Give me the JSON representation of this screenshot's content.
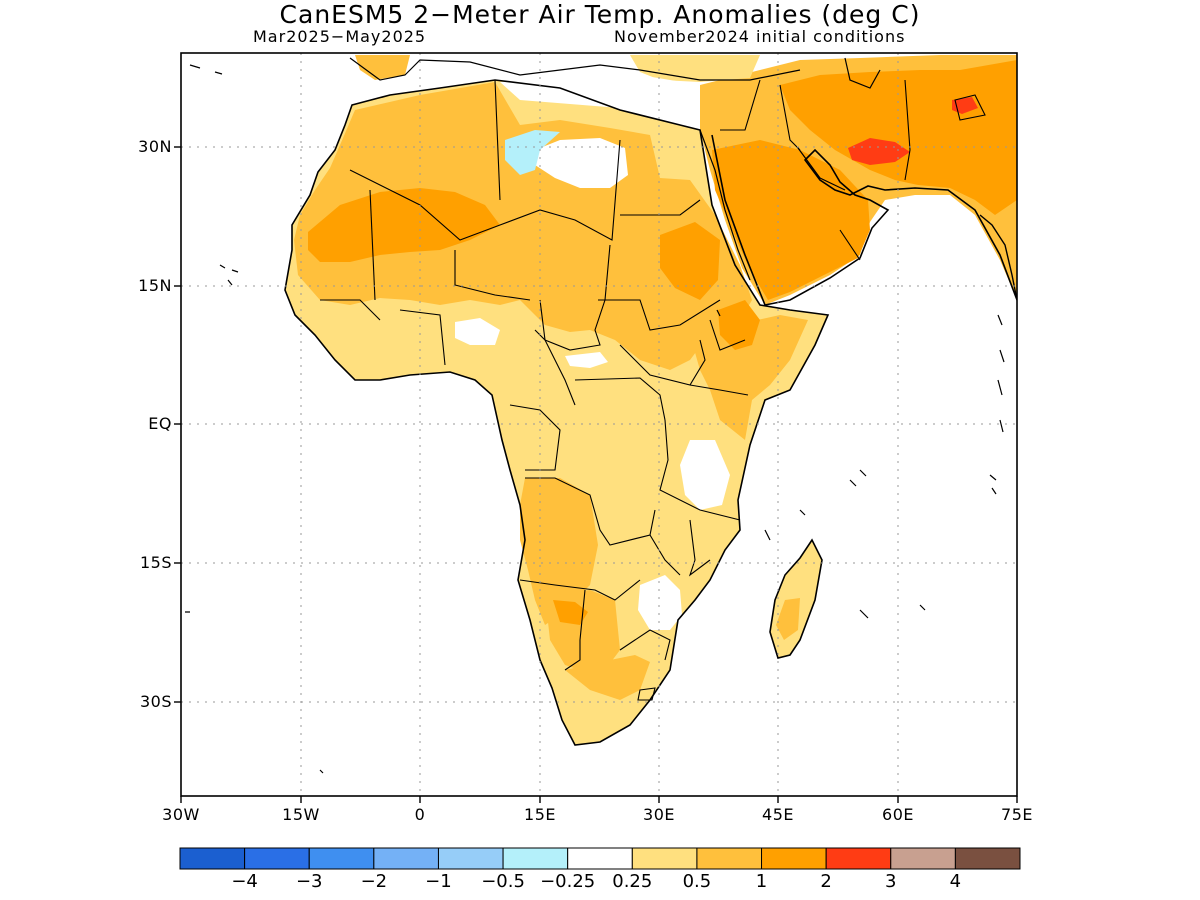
{
  "title": "CanESM5 2−Meter Air Temp. Anomalies (deg C)",
  "subtitle_left": "Mar2025−May2025",
  "subtitle_right": "November2024 initial conditions",
  "lat_labels": [
    "30N",
    "15N",
    "EQ",
    "15S",
    "30S"
  ],
  "lon_labels": [
    "30W",
    "15W",
    "0",
    "15E",
    "30E",
    "45E",
    "60E",
    "75E"
  ],
  "colorbar": {
    "colors": [
      "#1b5fd0",
      "#2a6fe6",
      "#3f8ff0",
      "#74b1f6",
      "#96cdf8",
      "#b4f0fa",
      "#ffffff",
      "#ffe07f",
      "#ffc03c",
      "#ffa000",
      "#ff3c14",
      "#c8a090",
      "#7a5040"
    ],
    "labels": [
      "−4",
      "−3",
      "−2",
      "−1",
      "−0.5",
      "−0.25",
      "0.25",
      "0.5",
      "1",
      "2",
      "3",
      "4"
    ]
  },
  "colors": {
    "ocean": "#ffffff",
    "anomaly_0_25_to_0_5": "#ffe07f",
    "anomaly_0_5_to_1": "#ffc03c",
    "anomaly_1_to_2": "#ffa000",
    "anomaly_2_to_3": "#ff3c14",
    "coastline": "#000000"
  }
}
